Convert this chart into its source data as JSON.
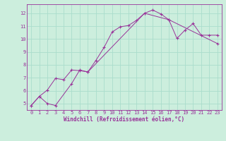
{
  "xlabel": "Windchill (Refroidissement éolien,°C)",
  "bg_color": "#cceedd",
  "line_color": "#993399",
  "grid_color": "#aaddcc",
  "xlim": [
    -0.5,
    23.5
  ],
  "ylim": [
    4.5,
    12.7
  ],
  "xticks": [
    0,
    1,
    2,
    3,
    4,
    5,
    6,
    7,
    8,
    9,
    10,
    11,
    12,
    13,
    14,
    15,
    16,
    17,
    18,
    19,
    20,
    21,
    22,
    23
  ],
  "yticks": [
    5,
    6,
    7,
    8,
    9,
    10,
    11,
    12
  ],
  "curve1_x": [
    0,
    1,
    2,
    3,
    4,
    5,
    6,
    7,
    8,
    9,
    10,
    11,
    12,
    13,
    14,
    15,
    16,
    17,
    18,
    19,
    20,
    21,
    22,
    23
  ],
  "curve1_y": [
    4.85,
    5.55,
    6.05,
    6.95,
    6.85,
    7.6,
    7.55,
    7.45,
    8.35,
    9.35,
    10.55,
    10.95,
    11.05,
    11.45,
    12.0,
    12.25,
    11.95,
    11.5,
    10.05,
    10.7,
    11.2,
    10.3,
    10.3,
    10.3
  ],
  "curve2_x": [
    0,
    1,
    2,
    3,
    5,
    6,
    7,
    14,
    17,
    23
  ],
  "curve2_y": [
    4.85,
    5.55,
    5.0,
    4.85,
    6.55,
    7.6,
    7.45,
    12.0,
    11.5,
    9.65
  ],
  "tick_fontsize": 5,
  "xlabel_fontsize": 5.5,
  "marker_size": 2.5,
  "line_width": 0.7
}
